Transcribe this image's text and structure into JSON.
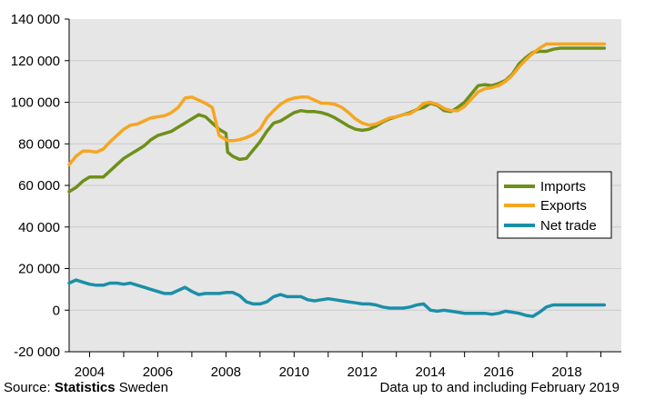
{
  "chart_data": {
    "type": "line",
    "title": "",
    "xlabel": "",
    "ylabel": "",
    "ylim": [
      -20000,
      140000
    ],
    "y_ticks": [
      -20000,
      0,
      20000,
      40000,
      60000,
      80000,
      100000,
      120000,
      140000
    ],
    "y_tick_labels": [
      "-20 000",
      "0",
      "20 000",
      "40 000",
      "60 000",
      "80 000",
      "100 000",
      "120 000",
      "140 000"
    ],
    "xlim": [
      2003.4,
      2019.6
    ],
    "x_tick_labels": [
      "2004",
      "2006",
      "2008",
      "2010",
      "2012",
      "2014",
      "2016",
      "2018"
    ],
    "grid": "horizontal",
    "legend_position": "right",
    "series": [
      {
        "name": "Imports",
        "color": "#6f8f1a",
        "x": [
          2003.4,
          2003.6,
          2003.8,
          2004.0,
          2004.2,
          2004.4,
          2004.6,
          2004.8,
          2005.0,
          2005.2,
          2005.4,
          2005.6,
          2005.8,
          2006.0,
          2006.2,
          2006.4,
          2006.6,
          2006.8,
          2007.0,
          2007.2,
          2007.4,
          2007.6,
          2007.8,
          2008.0,
          2008.05,
          2008.2,
          2008.4,
          2008.6,
          2008.8,
          2009.0,
          2009.2,
          2009.4,
          2009.6,
          2009.8,
          2010.0,
          2010.2,
          2010.4,
          2010.6,
          2010.8,
          2011.0,
          2011.2,
          2011.4,
          2011.6,
          2011.8,
          2012.0,
          2012.2,
          2012.4,
          2012.6,
          2012.8,
          2013.0,
          2013.2,
          2013.4,
          2013.6,
          2013.8,
          2014.0,
          2014.2,
          2014.4,
          2014.6,
          2014.8,
          2015.0,
          2015.2,
          2015.4,
          2015.6,
          2015.8,
          2016.0,
          2016.2,
          2016.4,
          2016.6,
          2016.8,
          2017.0,
          2017.2,
          2017.4,
          2017.6,
          2017.8,
          2018.0,
          2018.2,
          2018.4,
          2018.6,
          2018.8,
          2019.1
        ],
        "values": [
          57000,
          59000,
          62000,
          64000,
          64000,
          64000,
          67000,
          70000,
          73000,
          75000,
          77000,
          79000,
          82000,
          84000,
          85000,
          86000,
          88000,
          90000,
          92000,
          94000,
          93000,
          90000,
          87000,
          85000,
          76000,
          74000,
          72500,
          73000,
          77000,
          81000,
          86000,
          90000,
          91000,
          93000,
          95000,
          96000,
          95500,
          95500,
          95000,
          94000,
          92500,
          90500,
          88500,
          87000,
          86500,
          87000,
          88500,
          90500,
          92000,
          93000,
          94000,
          95000,
          96500,
          97500,
          99500,
          98500,
          96000,
          95500,
          97500,
          100000,
          104000,
          108000,
          108500,
          108000,
          109000,
          110500,
          113500,
          118500,
          121500,
          124000,
          124500,
          124500,
          125500,
          126000,
          126000,
          126000,
          126000,
          126000,
          126000,
          126000
        ],
        "_note": "trailing points extend along the final plateau"
      },
      {
        "name": "Exports",
        "color": "#f5a623",
        "x": [
          2003.4,
          2003.6,
          2003.8,
          2004.0,
          2004.2,
          2004.4,
          2004.6,
          2004.8,
          2005.0,
          2005.2,
          2005.4,
          2005.6,
          2005.8,
          2006.0,
          2006.2,
          2006.4,
          2006.6,
          2006.8,
          2007.0,
          2007.2,
          2007.4,
          2007.6,
          2007.8,
          2008.0,
          2008.05,
          2008.2,
          2008.4,
          2008.6,
          2008.8,
          2009.0,
          2009.2,
          2009.4,
          2009.6,
          2009.8,
          2010.0,
          2010.2,
          2010.4,
          2010.6,
          2010.8,
          2011.0,
          2011.2,
          2011.4,
          2011.6,
          2011.8,
          2012.0,
          2012.2,
          2012.4,
          2012.6,
          2012.8,
          2013.0,
          2013.2,
          2013.4,
          2013.6,
          2013.8,
          2014.0,
          2014.2,
          2014.4,
          2014.6,
          2014.8,
          2015.0,
          2015.2,
          2015.4,
          2015.6,
          2015.8,
          2016.0,
          2016.2,
          2016.4,
          2016.6,
          2016.8,
          2017.0,
          2017.2,
          2017.4,
          2017.6,
          2017.8,
          2018.0,
          2018.2,
          2018.4,
          2018.6,
          2018.8,
          2019.1
        ],
        "values": [
          70000,
          74000,
          76500,
          76500,
          76000,
          77500,
          81000,
          84000,
          87000,
          89000,
          89500,
          91000,
          92500,
          93000,
          93500,
          95000,
          97500,
          102000,
          102500,
          101000,
          99500,
          97500,
          84000,
          82000,
          81500,
          81500,
          82000,
          83000,
          84500,
          87000,
          92500,
          96000,
          99000,
          101000,
          102000,
          102500,
          102500,
          101000,
          99500,
          99500,
          99000,
          97500,
          95000,
          92000,
          90000,
          89000,
          89500,
          91000,
          92500,
          93000,
          94000,
          94500,
          96500,
          99500,
          100000,
          99000,
          97000,
          96000,
          96000,
          98000,
          101500,
          105000,
          106500,
          107000,
          108000,
          110000,
          113000,
          117000,
          120500,
          123500,
          126000,
          128000,
          128000,
          128000,
          128000,
          128000,
          128000,
          128000,
          128000,
          128000
        ]
      },
      {
        "name": "Net trade",
        "color": "#1b8fa8",
        "x": [
          2003.4,
          2003.6,
          2003.8,
          2004.0,
          2004.2,
          2004.4,
          2004.6,
          2004.8,
          2005.0,
          2005.2,
          2005.4,
          2005.6,
          2005.8,
          2006.0,
          2006.2,
          2006.4,
          2006.6,
          2006.8,
          2007.0,
          2007.2,
          2007.4,
          2007.6,
          2007.8,
          2008.0,
          2008.2,
          2008.4,
          2008.6,
          2008.8,
          2009.0,
          2009.2,
          2009.4,
          2009.6,
          2009.8,
          2010.0,
          2010.2,
          2010.4,
          2010.6,
          2010.8,
          2011.0,
          2011.2,
          2011.4,
          2011.6,
          2011.8,
          2012.0,
          2012.2,
          2012.4,
          2012.6,
          2012.8,
          2013.0,
          2013.2,
          2013.4,
          2013.6,
          2013.8,
          2014.0,
          2014.2,
          2014.4,
          2014.6,
          2014.8,
          2015.0,
          2015.2,
          2015.4,
          2015.6,
          2015.8,
          2016.0,
          2016.2,
          2016.4,
          2016.6,
          2016.8,
          2017.0,
          2017.2,
          2017.4,
          2017.6,
          2017.8,
          2018.0,
          2018.2,
          2018.4,
          2018.6,
          2018.8,
          2019.1
        ],
        "values": [
          13000,
          14500,
          13500,
          12500,
          12000,
          12000,
          13000,
          13000,
          12500,
          13000,
          12000,
          11000,
          10000,
          9000,
          8000,
          8000,
          9500,
          11000,
          9000,
          7500,
          8000,
          8000,
          8000,
          8500,
          8500,
          7000,
          4000,
          3000,
          3000,
          4000,
          6500,
          7500,
          6500,
          6500,
          6500,
          5000,
          4500,
          5000,
          5500,
          5000,
          4500,
          4000,
          3500,
          3000,
          3000,
          2500,
          1500,
          1000,
          1000,
          1000,
          1500,
          2500,
          3000,
          0,
          -500,
          0,
          -500,
          -1000,
          -1500,
          -1500,
          -1500,
          -1500,
          -2000,
          -1500,
          -500,
          -1000,
          -1500,
          -2500,
          -3000,
          -1000,
          1500,
          2500,
          2500,
          2500,
          2500,
          2500,
          2500,
          2500,
          2500
        ]
      }
    ]
  },
  "footer": {
    "source_prefix": "Source:",
    "source_brand": "Statistics",
    "source_suffix": "Sweden",
    "note": "Data up to and including February 2019"
  },
  "colors": {
    "plot_background": "#e6e6e6",
    "gridline": "#cccccc",
    "axis": "#000000"
  }
}
